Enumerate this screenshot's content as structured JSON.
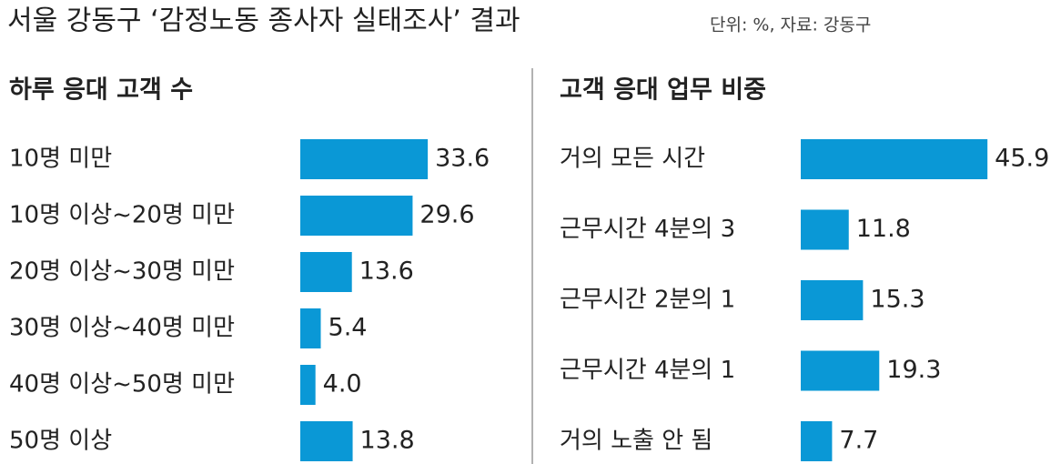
{
  "header": {
    "title": "서울 강동구 ‘감정노동 종사자 실태조사’ 결과",
    "note": "단위: %, 자료: 강동구"
  },
  "chart_data": [
    {
      "type": "bar",
      "orientation": "horizontal",
      "title": "하루 응대 고객 수",
      "color": "#0a98d6",
      "categories": [
        "10명 미만",
        "10명 이상~20명 미만",
        "20명 이상~30명 미만",
        "30명 이상~40명 미만",
        "40명 이상~50명 미만",
        "50명 이상"
      ],
      "values": [
        33.6,
        29.6,
        13.6,
        5.4,
        4.0,
        13.8
      ],
      "value_labels": [
        "33.6",
        "29.6",
        "13.6",
        "5.4",
        "4.0",
        "13.8"
      ]
    },
    {
      "type": "bar",
      "orientation": "horizontal",
      "title": "고객 응대 업무 비중",
      "color": "#0a98d6",
      "categories": [
        "거의 모든 시간",
        "근무시간 4분의 3",
        "근무시간 2분의 1",
        "근무시간 4분의 1",
        "거의 노출 안 됨"
      ],
      "values": [
        45.9,
        11.8,
        15.3,
        19.3,
        7.7
      ],
      "value_labels": [
        "45.9",
        "11.8",
        "15.3",
        "19.3",
        "7.7"
      ]
    }
  ]
}
